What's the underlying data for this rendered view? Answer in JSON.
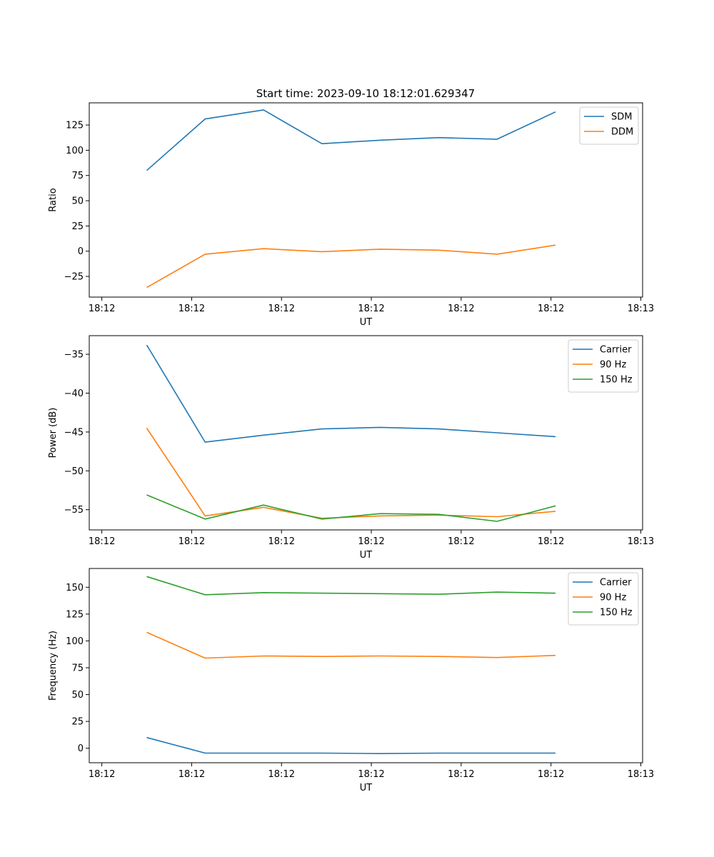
{
  "figure_title": "Start time: 2023-09-10 18:12:01.629347",
  "chart_data": [
    {
      "type": "line",
      "title": "Start time: 2023-09-10 18:12:01.629347",
      "xlabel": "UT",
      "ylabel": "Ratio",
      "x_tick_labels": [
        "18:12",
        "18:12",
        "18:12",
        "18:12",
        "18:12",
        "18:12",
        "18:13"
      ],
      "x_tick_positions": [
        0,
        1,
        2,
        3,
        4,
        5,
        6
      ],
      "xlim": [
        -0.14,
        6.02
      ],
      "x": [
        0.5,
        1.15,
        1.8,
        2.45,
        3.1,
        3.75,
        4.4,
        5.05
      ],
      "ylim": [
        -45.5,
        147
      ],
      "y_ticks": [
        -25,
        0,
        25,
        50,
        75,
        100,
        125
      ],
      "legend_position": "upper-right",
      "series": [
        {
          "name": "SDM",
          "color": "#1f77b4",
          "values": [
            80,
            131,
            140,
            106.5,
            110,
            112.5,
            111,
            138
          ]
        },
        {
          "name": "DDM",
          "color": "#ff7f0e",
          "values": [
            -36,
            -3,
            2.5,
            -0.5,
            2,
            1,
            -3,
            6
          ]
        }
      ]
    },
    {
      "type": "line",
      "title": "",
      "xlabel": "UT",
      "ylabel": "Power (dB)",
      "x_tick_labels": [
        "18:12",
        "18:12",
        "18:12",
        "18:12",
        "18:12",
        "18:12",
        "18:13"
      ],
      "x_tick_positions": [
        0,
        1,
        2,
        3,
        4,
        5,
        6
      ],
      "xlim": [
        -0.14,
        6.02
      ],
      "x": [
        0.5,
        1.15,
        1.8,
        2.45,
        3.1,
        3.75,
        4.4,
        5.05
      ],
      "ylim": [
        -57.6,
        -32.6
      ],
      "y_ticks": [
        -55,
        -50,
        -45,
        -40,
        -35
      ],
      "legend_position": "upper-right",
      "series": [
        {
          "name": "Carrier",
          "color": "#1f77b4",
          "values": [
            -33.8,
            -46.3,
            -45.4,
            -44.6,
            -44.4,
            -44.6,
            -45.1,
            -45.6
          ]
        },
        {
          "name": "90 Hz",
          "color": "#ff7f0e",
          "values": [
            -44.5,
            -55.8,
            -54.7,
            -56.1,
            -55.8,
            -55.7,
            -55.9,
            -55.2
          ]
        },
        {
          "name": "150 Hz",
          "color": "#2ca02c",
          "values": [
            -53.1,
            -56.2,
            -54.4,
            -56.2,
            -55.5,
            -55.6,
            -56.5,
            -54.5
          ]
        }
      ]
    },
    {
      "type": "line",
      "title": "",
      "xlabel": "UT",
      "ylabel": "Frequency (Hz)",
      "x_tick_labels": [
        "18:12",
        "18:12",
        "18:12",
        "18:12",
        "18:12",
        "18:12",
        "18:13"
      ],
      "x_tick_positions": [
        0,
        1,
        2,
        3,
        4,
        5,
        6
      ],
      "xlim": [
        -0.14,
        6.02
      ],
      "x": [
        0.5,
        1.15,
        1.8,
        2.45,
        3.1,
        3.75,
        4.4,
        5.05
      ],
      "ylim": [
        -13.5,
        167.5
      ],
      "y_ticks": [
        0,
        25,
        50,
        75,
        100,
        125,
        150
      ],
      "legend_position": "upper-right",
      "series": [
        {
          "name": "Carrier",
          "color": "#1f77b4",
          "values": [
            10,
            -4.5,
            -4.5,
            -4.5,
            -5,
            -4.5,
            -4.5,
            -4.5
          ]
        },
        {
          "name": "90 Hz",
          "color": "#ff7f0e",
          "values": [
            108,
            84,
            86,
            85.5,
            86,
            85.5,
            84.5,
            86.5
          ]
        },
        {
          "name": "150 Hz",
          "color": "#2ca02c",
          "values": [
            160,
            143,
            145,
            144.5,
            144,
            143.5,
            145.5,
            144.5
          ]
        }
      ]
    }
  ]
}
